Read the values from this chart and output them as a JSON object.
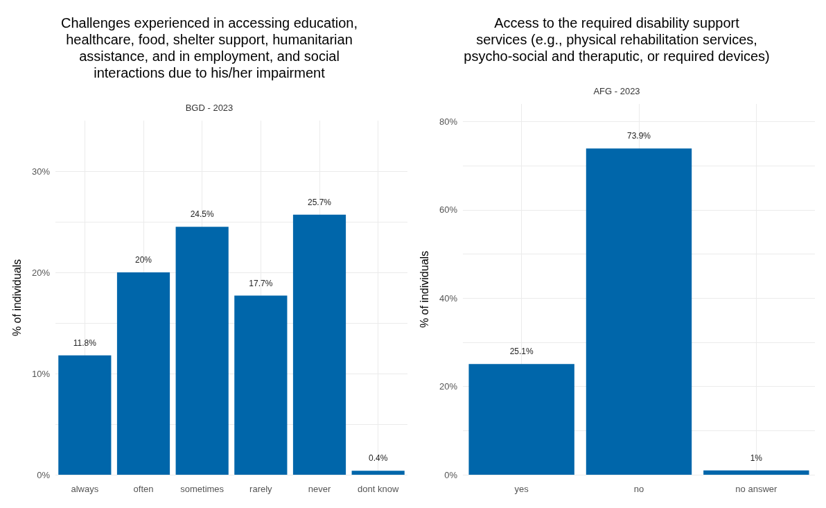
{
  "chart_data": [
    {
      "type": "bar",
      "title": "Challenges experienced in accessing education,\nhealthcare, food, shelter support, humanitarian\nassistance, and in employment, and social\ninteractions due to his/her impairment",
      "subtitle": "BGD - 2023",
      "ylabel": "% of individuals",
      "categories": [
        "always",
        "often",
        "sometimes",
        "rarely",
        "never",
        "dont know"
      ],
      "values": [
        11.8,
        20,
        24.5,
        17.7,
        25.7,
        0.4
      ],
      "color": "#0066aa",
      "value_labels": [
        "11.8%",
        "20%",
        "24.5%",
        "17.7%",
        "25.7%",
        "0.4%"
      ],
      "ylim": [
        0,
        35
      ],
      "yticks": [
        {
          "value": 0,
          "label": "0%"
        },
        {
          "value": 5,
          "label": null
        },
        {
          "value": 10,
          "label": "10%"
        },
        {
          "value": 15,
          "label": null
        },
        {
          "value": 20,
          "label": "20%"
        },
        {
          "value": 25,
          "label": null
        },
        {
          "value": 30,
          "label": "30%"
        }
      ],
      "grid": true
    },
    {
      "type": "bar",
      "title": "Access to the required disability support\nservices (e.g., physical rehabilitation services,\npsycho-social and theraputic, or required devices)",
      "subtitle": "AFG - 2023",
      "ylabel": "% of individuals",
      "categories": [
        "yes",
        "no",
        "no answer"
      ],
      "values": [
        25.1,
        73.9,
        1
      ],
      "color": "#0066aa",
      "value_labels": [
        "25.1%",
        "73.9%",
        "1%"
      ],
      "ylim": [
        0,
        84
      ],
      "yticks": [
        {
          "value": 0,
          "label": "0%"
        },
        {
          "value": 10,
          "label": null
        },
        {
          "value": 20,
          "label": "20%"
        },
        {
          "value": 30,
          "label": null
        },
        {
          "value": 40,
          "label": "40%"
        },
        {
          "value": 50,
          "label": null
        },
        {
          "value": 60,
          "label": "60%"
        },
        {
          "value": 70,
          "label": null
        },
        {
          "value": 80,
          "label": "80%"
        }
      ],
      "grid": true
    }
  ]
}
